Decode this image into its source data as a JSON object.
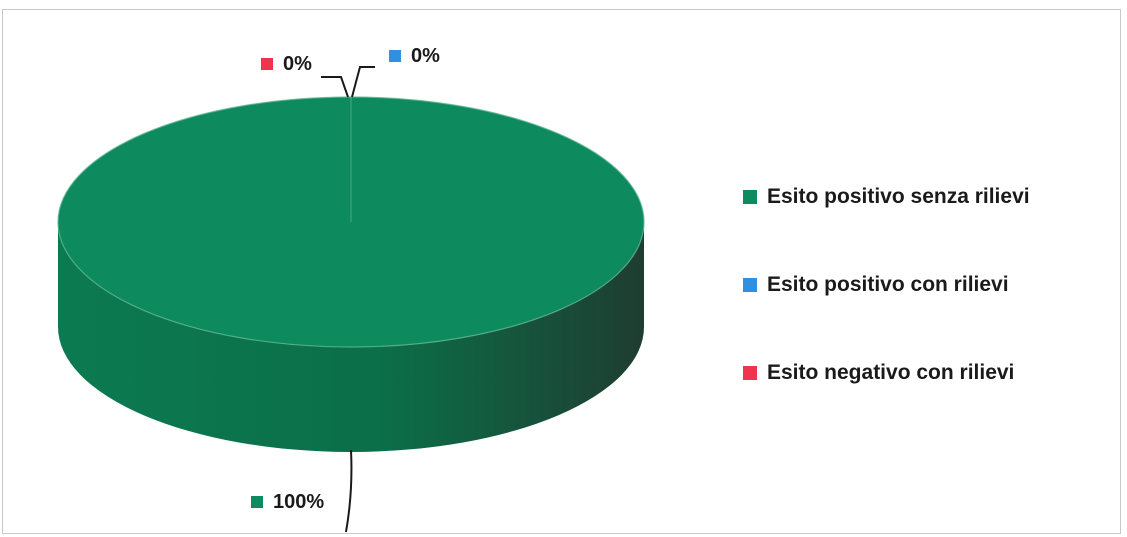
{
  "chart_data": {
    "type": "pie",
    "title": "",
    "style": "3d",
    "slices": [
      {
        "label": "Esito positivo senza rilievi",
        "value": 100,
        "value_label": "100%",
        "color": "#0e8a5f"
      },
      {
        "label": "Esito positivo con rilievi",
        "value": 0,
        "value_label": "0%",
        "color": "#2f8fe0"
      },
      {
        "label": "Esito negativo con rilievi",
        "value": 0,
        "value_label": "0%",
        "color": "#f0344f"
      }
    ],
    "legend_position": "right"
  },
  "colors": {
    "side_dark": "#1f4a37",
    "side_light": "#0c7a51"
  }
}
